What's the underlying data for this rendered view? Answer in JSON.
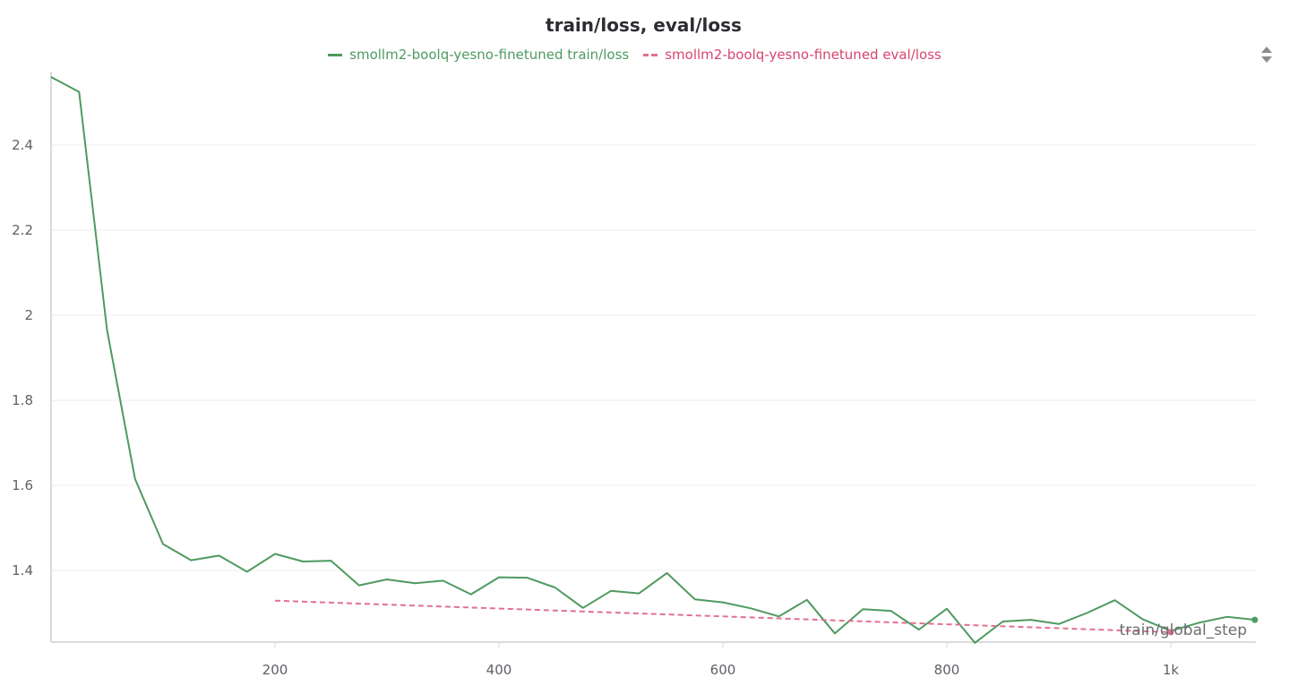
{
  "chart_data": {
    "type": "line",
    "title": "train/loss, eval/loss",
    "xlabel": "train/global_step",
    "ylabel": "",
    "xlim": [
      0,
      1075
    ],
    "ylim": [
      1.23,
      2.56
    ],
    "grid": true,
    "legend_position": "top-center",
    "y_ticks": [
      {
        "value": 2.4,
        "label": "2.4"
      },
      {
        "value": 2.2,
        "label": "2.2"
      },
      {
        "value": 2.0,
        "label": "2"
      },
      {
        "value": 1.8,
        "label": "1.8"
      },
      {
        "value": 1.6,
        "label": "1.6"
      },
      {
        "value": 1.4,
        "label": "1.4"
      }
    ],
    "x_ticks": [
      {
        "value": 200,
        "label": "200"
      },
      {
        "value": 400,
        "label": "400"
      },
      {
        "value": 600,
        "label": "600"
      },
      {
        "value": 800,
        "label": "800"
      },
      {
        "value": 1000,
        "label": "1k"
      }
    ],
    "series": [
      {
        "name": "smollm2-boolq-yesno-finetuned train/loss",
        "color": "#4e9a5f",
        "style": "solid",
        "x": [
          0,
          25,
          50,
          75,
          100,
          125,
          150,
          175,
          200,
          225,
          250,
          275,
          300,
          325,
          350,
          375,
          400,
          425,
          450,
          475,
          500,
          525,
          550,
          575,
          600,
          625,
          650,
          675,
          700,
          725,
          750,
          775,
          800,
          825,
          850,
          875,
          900,
          925,
          950,
          975,
          1000,
          1025,
          1050,
          1075
        ],
        "y": [
          2.56,
          2.525,
          1.965,
          1.615,
          1.462,
          1.424,
          1.435,
          1.397,
          1.439,
          1.421,
          1.423,
          1.365,
          1.379,
          1.37,
          1.376,
          1.344,
          1.384,
          1.383,
          1.36,
          1.312,
          1.352,
          1.346,
          1.394,
          1.332,
          1.325,
          1.311,
          1.292,
          1.331,
          1.252,
          1.309,
          1.305,
          1.261,
          1.31,
          1.23,
          1.28,
          1.284,
          1.274,
          1.3,
          1.33,
          1.285,
          1.258,
          1.277,
          1.291,
          1.284
        ]
      },
      {
        "name": "smollm2-boolq-yesno-finetuned eval/loss",
        "color": "#e0728f",
        "style": "dashed",
        "x": [
          200,
          1000
        ],
        "y": [
          1.329,
          1.255
        ]
      }
    ]
  }
}
